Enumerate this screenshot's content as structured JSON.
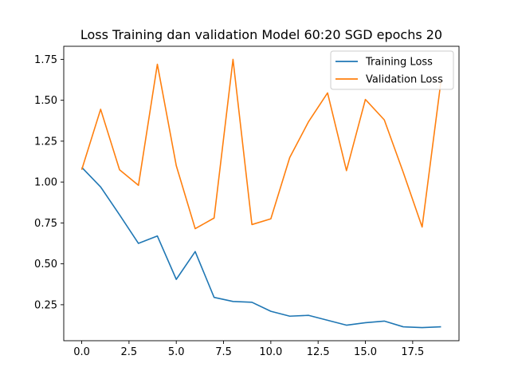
{
  "chart_data": {
    "type": "line",
    "title": "Loss Training dan validation Model 60:20 SGD epochs 20",
    "xlabel": "",
    "ylabel": "",
    "xlim": [
      -0.95,
      19.95
    ],
    "ylim": [
      0.03,
      1.83
    ],
    "xticks": [
      0,
      2.5,
      5,
      7.5,
      10,
      12.5,
      15,
      17.5
    ],
    "xtick_labels": [
      "0.0",
      "2.5",
      "5.0",
      "7.5",
      "10.0",
      "12.5",
      "15.0",
      "17.5"
    ],
    "yticks": [
      0.25,
      0.5,
      0.75,
      1.0,
      1.25,
      1.5,
      1.75
    ],
    "ytick_labels": [
      "0.25",
      "0.50",
      "0.75",
      "1.00",
      "1.25",
      "1.50",
      "1.75"
    ],
    "grid": false,
    "legend_position": "top-right",
    "x": [
      0,
      1,
      2,
      3,
      4,
      5,
      6,
      7,
      8,
      9,
      10,
      11,
      12,
      13,
      14,
      15,
      16,
      17,
      18,
      19
    ],
    "series": [
      {
        "name": "Training Loss",
        "color": "#1f77b4",
        "values": [
          1.09,
          0.97,
          0.8,
          0.625,
          0.67,
          0.405,
          0.575,
          0.295,
          0.27,
          0.265,
          0.21,
          0.18,
          0.185,
          0.155,
          0.125,
          0.14,
          0.15,
          0.115,
          0.11,
          0.115
        ]
      },
      {
        "name": "Validation Loss",
        "color": "#ff7f0e",
        "values": [
          1.075,
          1.445,
          1.075,
          0.98,
          1.72,
          1.1,
          0.715,
          0.78,
          1.75,
          0.74,
          0.775,
          1.15,
          1.37,
          1.545,
          1.07,
          1.505,
          1.38,
          1.06,
          0.725,
          1.62
        ]
      }
    ]
  }
}
